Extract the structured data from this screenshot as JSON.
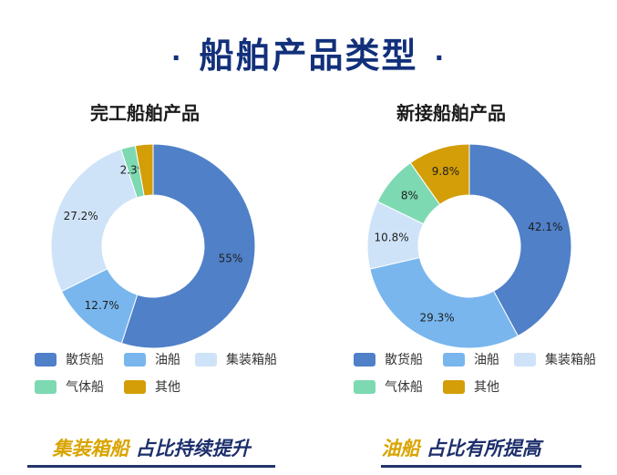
{
  "page": {
    "title": "船舶产品类型",
    "title_dot": "·"
  },
  "legend_colors": {
    "散货船": "#4f80c8",
    "油船": "#79b6ee",
    "集装箱船": "#cfe3f8",
    "气体船": "#7dd9b2",
    "其他": "#d39e07"
  },
  "chart_data": [
    {
      "type": "pie",
      "title": "完工船舶产品",
      "categories": [
        "散货船",
        "油船",
        "集装箱船",
        "气体船",
        "其他"
      ],
      "values": [
        55,
        12.7,
        27.2,
        2.3,
        2.8
      ],
      "labels": [
        "55%",
        "12.7%",
        "27.2%",
        "2.3%",
        ""
      ],
      "donut": true,
      "legend": [
        "散货船",
        "油船",
        "集装箱船",
        "气体船",
        "其他"
      ],
      "legend_position": "bottom"
    },
    {
      "type": "pie",
      "title": "新接船舶产品",
      "categories": [
        "散货船",
        "油船",
        "集装箱船",
        "气体船",
        "其他"
      ],
      "values": [
        42.1,
        29.3,
        10.8,
        8,
        9.8
      ],
      "labels": [
        "42.1%",
        "29.3%",
        "10.8%",
        "8%",
        "9.8%"
      ],
      "donut": true,
      "legend": [
        "散货船",
        "油船",
        "集装箱船",
        "气体船",
        "其他"
      ],
      "legend_position": "bottom"
    }
  ],
  "conclusions": [
    {
      "highlight": "集装箱船",
      "text": " 占比持续提升"
    },
    {
      "highlight": "油船",
      "text": " 占比有所提高"
    }
  ]
}
